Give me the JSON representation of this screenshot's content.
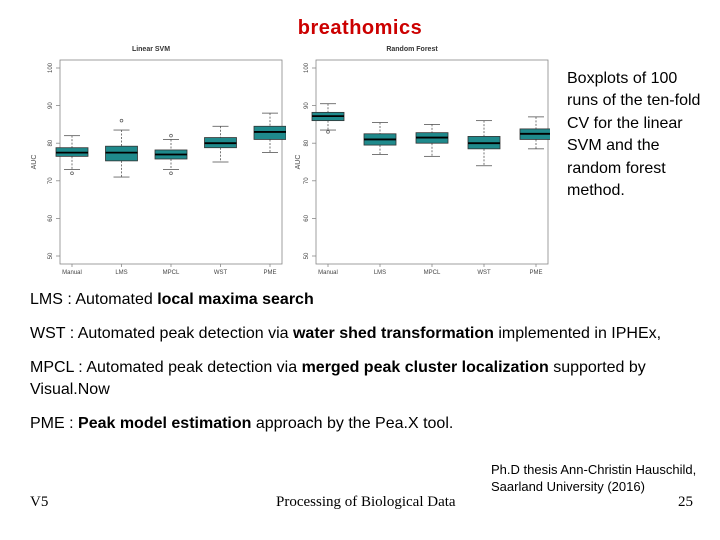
{
  "slide": {
    "title": "breathomics",
    "caption": "Boxplots of 100 runs of the ten-fold CV for the linear SVM and the random forest method."
  },
  "notes": [
    {
      "parts": [
        {
          "t": "LMS : Automated ",
          "b": false
        },
        {
          "t": "local maxima search",
          "b": true
        }
      ]
    },
    {
      "parts": [
        {
          "t": "WST : Automated peak detection via ",
          "b": false
        },
        {
          "t": "water shed transformation",
          "b": true
        },
        {
          "t": " implemented in IPHEx,",
          "b": false
        }
      ]
    },
    {
      "parts": [
        {
          "t": "MPCL : Automated peak detection via ",
          "b": false
        },
        {
          "t": "merged peak cluster localization",
          "b": true
        },
        {
          "t": " supported by Visual.Now",
          "b": false
        }
      ]
    },
    {
      "parts": [
        {
          "t": "PME : ",
          "b": false
        },
        {
          "t": "Peak model estimation",
          "b": true
        },
        {
          "t": " approach by the Pea.X tool.",
          "b": false
        }
      ]
    }
  ],
  "footer": {
    "left": "V5",
    "center": "Processing of Biological Data",
    "credit_line1": "Ph.D thesis Ann-Christin Hauschild,",
    "credit_line2": "Saarland University (2016)",
    "page": "25"
  },
  "chart_data": [
    {
      "type": "boxplot",
      "title": "Linear SVM",
      "ylabel": "AUC",
      "ylim": [
        50,
        100
      ],
      "yticks": [
        50,
        60,
        70,
        80,
        90,
        100
      ],
      "box_color": "#1f8a8c",
      "categories": [
        "Manual",
        "LMS",
        "MPCL",
        "WST",
        "PME"
      ],
      "boxes": [
        {
          "whisker_low": 73,
          "q1": 76.5,
          "median": 77.5,
          "q3": 78.8,
          "whisker_high": 82,
          "outliers": [
            72
          ]
        },
        {
          "whisker_low": 71,
          "q1": 75.3,
          "median": 77.5,
          "q3": 79.2,
          "whisker_high": 83.5,
          "outliers": [
            86
          ]
        },
        {
          "whisker_low": 73,
          "q1": 75.8,
          "median": 77,
          "q3": 78.2,
          "whisker_high": 81,
          "outliers": [
            82,
            72
          ]
        },
        {
          "whisker_low": 75,
          "q1": 78.8,
          "median": 80,
          "q3": 81.5,
          "whisker_high": 84.5,
          "outliers": []
        },
        {
          "whisker_low": 77.5,
          "q1": 81,
          "median": 83,
          "q3": 84.5,
          "whisker_high": 88,
          "outliers": []
        }
      ]
    },
    {
      "type": "boxplot",
      "title": "Random Forest",
      "ylabel": "AUC",
      "ylim": [
        50,
        100
      ],
      "yticks": [
        50,
        60,
        70,
        80,
        90,
        100
      ],
      "box_color": "#1f8a8c",
      "categories": [
        "Manual",
        "LMS",
        "MPCL",
        "WST",
        "PME"
      ],
      "boxes": [
        {
          "whisker_low": 83.5,
          "q1": 86,
          "median": 87.2,
          "q3": 88.2,
          "whisker_high": 90.5,
          "outliers": [
            83
          ]
        },
        {
          "whisker_low": 77,
          "q1": 79.5,
          "median": 81,
          "q3": 82.5,
          "whisker_high": 85.5,
          "outliers": []
        },
        {
          "whisker_low": 76.5,
          "q1": 80,
          "median": 81.5,
          "q3": 82.8,
          "whisker_high": 85,
          "outliers": []
        },
        {
          "whisker_low": 74,
          "q1": 78.5,
          "median": 80,
          "q3": 81.8,
          "whisker_high": 86,
          "outliers": []
        },
        {
          "whisker_low": 78.5,
          "q1": 81,
          "median": 82.5,
          "q3": 83.8,
          "whisker_high": 87,
          "outliers": []
        }
      ]
    }
  ]
}
